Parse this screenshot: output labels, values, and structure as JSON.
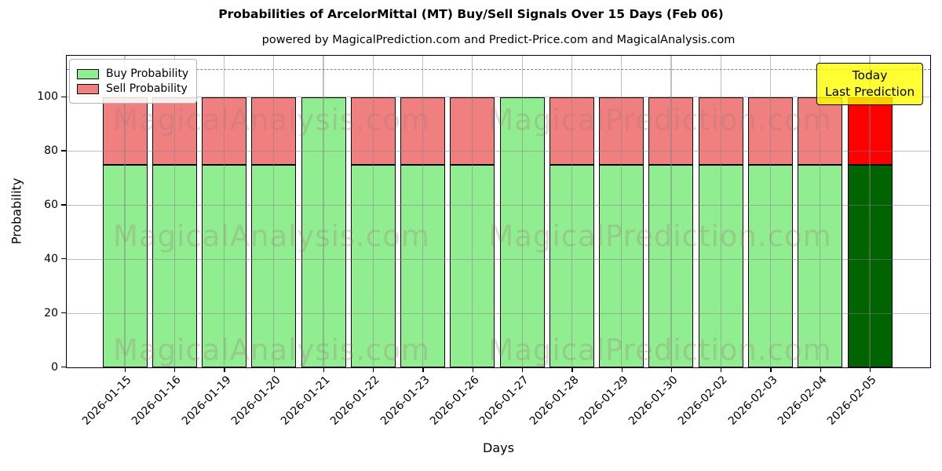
{
  "annotation": {
    "line1": "Today",
    "line2": "Last Prediction"
  },
  "watermarks": {
    "left": "MagicalAnalysis.com",
    "right": "MagicalPrediction.com"
  },
  "colors": {
    "buy": "#90EE90",
    "sell": "#F08080",
    "today_buy": "#006400",
    "today_sell": "#FF0000",
    "bar_edge": "#000000",
    "annotation_bg": "rgba(255,255,0,0.8)",
    "annotation_border": "#000000",
    "dashed_line": "#808080",
    "grid": "rgba(128,128,128,0.5)",
    "watermark": "rgba(165,118,118,0.28)",
    "legend_buy_swatch": "#90EE90",
    "legend_sell_swatch": "#F08080"
  },
  "chart_data": {
    "type": "bar",
    "stacked": true,
    "title": "Probabilities of ArcelorMittal (MT) Buy/Sell Signals Over 15 Days (Feb 06)",
    "subtitle": "powered by MagicalPrediction.com and Predict-Price.com and MagicalAnalysis.com",
    "xlabel": "Days",
    "ylabel": "Probability",
    "categories": [
      "2026-01-15",
      "2026-01-16",
      "2026-01-19",
      "2026-01-20",
      "2026-01-21",
      "2026-01-22",
      "2026-01-23",
      "2026-01-26",
      "2026-01-27",
      "2026-01-28",
      "2026-01-29",
      "2026-01-30",
      "2026-02-02",
      "2026-02-03",
      "2026-02-04",
      "2026-02-05"
    ],
    "series": [
      {
        "name": "Buy Probability",
        "values": [
          75,
          75,
          75,
          75,
          100,
          75,
          75,
          75,
          100,
          75,
          75,
          75,
          75,
          75,
          75,
          75
        ]
      },
      {
        "name": "Sell Probability",
        "values": [
          25,
          25,
          25,
          25,
          0,
          25,
          25,
          25,
          0,
          25,
          25,
          25,
          25,
          25,
          25,
          25
        ]
      }
    ],
    "today_index": 15,
    "ylim": [
      0,
      115
    ],
    "yticks": [
      0,
      20,
      40,
      60,
      80,
      100
    ],
    "dashed_line_y": 110,
    "grid": true,
    "legend_position": "upper left"
  }
}
